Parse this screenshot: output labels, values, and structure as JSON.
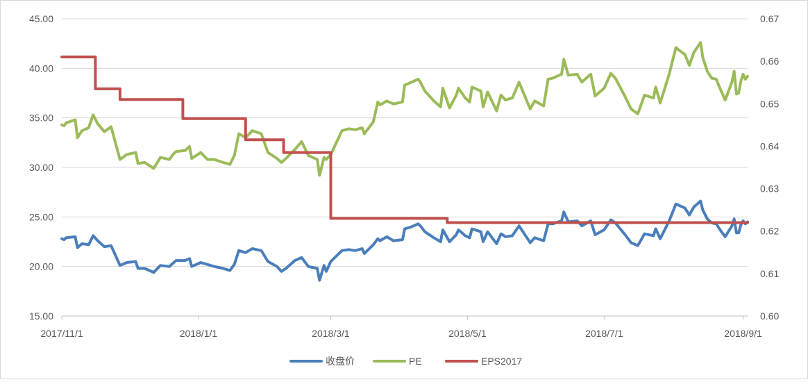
{
  "chart_data": {
    "type": "line",
    "title": "",
    "y_left": {
      "min": 15,
      "max": 45,
      "ticks": [
        "15.00",
        "20.00",
        "25.00",
        "30.00",
        "35.00",
        "40.00",
        "45.00"
      ]
    },
    "y_right": {
      "min": 0.6,
      "max": 0.67,
      "ticks": [
        "0.60",
        "0.61",
        "0.62",
        "0.63",
        "0.64",
        "0.65",
        "0.66",
        "0.67"
      ]
    },
    "x_range": [
      "2017-11-01",
      "2018-09-03"
    ],
    "x_ticks": [
      {
        "date": "2017-11-01",
        "label": "2017/11/1"
      },
      {
        "date": "2018-01-01",
        "label": "2018/1/1"
      },
      {
        "date": "2018-03-01",
        "label": "2018/3/1"
      },
      {
        "date": "2018-05-01",
        "label": "2018/5/1"
      },
      {
        "date": "2018-07-01",
        "label": "2018/7/1"
      },
      {
        "date": "2018-09-01",
        "label": "2018/9/1"
      }
    ],
    "grid": "horizontal",
    "legend_position": "bottom",
    "series": [
      {
        "name": "收盘价",
        "axis": "left",
        "color": "#4a7ebb",
        "points": [
          [
            "2017-11-01",
            22.8
          ],
          [
            "2017-11-02",
            22.7
          ],
          [
            "2017-11-03",
            22.9
          ],
          [
            "2017-11-07",
            23.0
          ],
          [
            "2017-11-08",
            21.9
          ],
          [
            "2017-11-10",
            22.3
          ],
          [
            "2017-11-13",
            22.2
          ],
          [
            "2017-11-15",
            23.1
          ],
          [
            "2017-11-17",
            22.6
          ],
          [
            "2017-11-20",
            22.0
          ],
          [
            "2017-11-23",
            22.1
          ],
          [
            "2017-11-27",
            20.1
          ],
          [
            "2017-11-30",
            20.4
          ],
          [
            "2017-12-04",
            20.5
          ],
          [
            "2017-12-05",
            19.8
          ],
          [
            "2017-12-08",
            19.8
          ],
          [
            "2017-12-12",
            19.4
          ],
          [
            "2017-12-15",
            20.1
          ],
          [
            "2017-12-19",
            20.0
          ],
          [
            "2017-12-21",
            20.4
          ],
          [
            "2017-12-22",
            20.6
          ],
          [
            "2017-12-26",
            20.6
          ],
          [
            "2017-12-28",
            20.8
          ],
          [
            "2017-12-29",
            20.0
          ],
          [
            "2018-01-02",
            20.4
          ],
          [
            "2018-01-05",
            20.2
          ],
          [
            "2018-01-08",
            20.0
          ],
          [
            "2018-01-12",
            19.8
          ],
          [
            "2018-01-15",
            19.6
          ],
          [
            "2018-01-17",
            20.2
          ],
          [
            "2018-01-19",
            21.6
          ],
          [
            "2018-01-22",
            21.4
          ],
          [
            "2018-01-25",
            21.8
          ],
          [
            "2018-01-29",
            21.6
          ],
          [
            "2018-02-01",
            20.5
          ],
          [
            "2018-02-05",
            20.0
          ],
          [
            "2018-02-07",
            19.5
          ],
          [
            "2018-02-09",
            19.8
          ],
          [
            "2018-02-13",
            20.6
          ],
          [
            "2018-02-16",
            20.9
          ],
          [
            "2018-02-19",
            20.0
          ],
          [
            "2018-02-23",
            19.8
          ],
          [
            "2018-02-24",
            18.6
          ],
          [
            "2018-02-26",
            20.1
          ],
          [
            "2018-02-27",
            19.5
          ],
          [
            "2018-03-01",
            20.5
          ],
          [
            "2018-03-06",
            21.6
          ],
          [
            "2018-03-09",
            21.7
          ],
          [
            "2018-03-12",
            21.6
          ],
          [
            "2018-03-15",
            21.8
          ],
          [
            "2018-03-16",
            21.3
          ],
          [
            "2018-03-20",
            22.2
          ],
          [
            "2018-03-22",
            22.8
          ],
          [
            "2018-03-23",
            22.6
          ],
          [
            "2018-03-26",
            23.0
          ],
          [
            "2018-03-29",
            22.6
          ],
          [
            "2018-04-02",
            22.7
          ],
          [
            "2018-04-03",
            23.8
          ],
          [
            "2018-04-06",
            24.0
          ],
          [
            "2018-04-09",
            24.3
          ],
          [
            "2018-04-10",
            24.1
          ],
          [
            "2018-04-12",
            23.5
          ],
          [
            "2018-04-16",
            22.9
          ],
          [
            "2018-04-19",
            22.5
          ],
          [
            "2018-04-20",
            23.7
          ],
          [
            "2018-04-23",
            22.5
          ],
          [
            "2018-04-26",
            23.2
          ],
          [
            "2018-04-27",
            23.7
          ],
          [
            "2018-04-30",
            23.1
          ],
          [
            "2018-05-02",
            22.9
          ],
          [
            "2018-05-03",
            23.8
          ],
          [
            "2018-05-07",
            23.5
          ],
          [
            "2018-05-08",
            22.5
          ],
          [
            "2018-05-10",
            23.5
          ],
          [
            "2018-05-14",
            22.3
          ],
          [
            "2018-05-16",
            23.3
          ],
          [
            "2018-05-18",
            23.0
          ],
          [
            "2018-05-21",
            23.1
          ],
          [
            "2018-05-24",
            24.1
          ],
          [
            "2018-05-29",
            22.4
          ],
          [
            "2018-05-31",
            22.9
          ],
          [
            "2018-06-04",
            22.6
          ],
          [
            "2018-06-06",
            24.3
          ],
          [
            "2018-06-08",
            24.3
          ],
          [
            "2018-06-12",
            24.6
          ],
          [
            "2018-06-13",
            25.5
          ],
          [
            "2018-06-15",
            24.5
          ],
          [
            "2018-06-19",
            24.6
          ],
          [
            "2018-06-21",
            24.1
          ],
          [
            "2018-06-25",
            24.6
          ],
          [
            "2018-06-27",
            23.2
          ],
          [
            "2018-07-01",
            23.7
          ],
          [
            "2018-07-04",
            24.7
          ],
          [
            "2018-07-06",
            24.4
          ],
          [
            "2018-07-10",
            23.3
          ],
          [
            "2018-07-13",
            22.4
          ],
          [
            "2018-07-16",
            22.1
          ],
          [
            "2018-07-19",
            23.3
          ],
          [
            "2018-07-23",
            23.1
          ],
          [
            "2018-07-24",
            23.8
          ],
          [
            "2018-07-26",
            22.8
          ],
          [
            "2018-07-30",
            24.6
          ],
          [
            "2018-08-02",
            26.3
          ],
          [
            "2018-08-03",
            26.2
          ],
          [
            "2018-08-06",
            25.9
          ],
          [
            "2018-08-08",
            25.2
          ],
          [
            "2018-08-10",
            26.0
          ],
          [
            "2018-08-13",
            26.6
          ],
          [
            "2018-08-14",
            25.7
          ],
          [
            "2018-08-16",
            24.8
          ],
          [
            "2018-08-18",
            24.4
          ],
          [
            "2018-08-20",
            24.3
          ],
          [
            "2018-08-22",
            23.6
          ],
          [
            "2018-08-24",
            23.0
          ],
          [
            "2018-08-27",
            24.1
          ],
          [
            "2018-08-28",
            24.8
          ],
          [
            "2018-08-29",
            23.4
          ],
          [
            "2018-08-30",
            23.4
          ],
          [
            "2018-08-31",
            24.2
          ],
          [
            "2018-09-01",
            24.6
          ],
          [
            "2018-09-02",
            24.3
          ],
          [
            "2018-09-03",
            24.5
          ]
        ]
      },
      {
        "name": "PE",
        "axis": "left",
        "color": "#9bbb59",
        "points": [
          [
            "2017-11-01",
            34.3
          ],
          [
            "2017-11-02",
            34.2
          ],
          [
            "2017-11-03",
            34.5
          ],
          [
            "2017-11-07",
            34.8
          ],
          [
            "2017-11-08",
            33.0
          ],
          [
            "2017-11-10",
            33.7
          ],
          [
            "2017-11-13",
            34.0
          ],
          [
            "2017-11-15",
            35.3
          ],
          [
            "2017-11-17",
            34.4
          ],
          [
            "2017-11-20",
            33.6
          ],
          [
            "2017-11-23",
            34.1
          ],
          [
            "2017-11-27",
            30.8
          ],
          [
            "2017-11-30",
            31.3
          ],
          [
            "2017-12-04",
            31.5
          ],
          [
            "2017-12-05",
            30.4
          ],
          [
            "2017-12-08",
            30.5
          ],
          [
            "2017-12-12",
            29.9
          ],
          [
            "2017-12-15",
            31.0
          ],
          [
            "2017-12-19",
            30.8
          ],
          [
            "2017-12-21",
            31.4
          ],
          [
            "2017-12-22",
            31.6
          ],
          [
            "2017-12-26",
            31.7
          ],
          [
            "2017-12-28",
            32.1
          ],
          [
            "2017-12-29",
            30.9
          ],
          [
            "2018-01-02",
            31.5
          ],
          [
            "2018-01-05",
            30.8
          ],
          [
            "2018-01-08",
            30.8
          ],
          [
            "2018-01-12",
            30.5
          ],
          [
            "2018-01-15",
            30.3
          ],
          [
            "2018-01-17",
            31.2
          ],
          [
            "2018-01-19",
            33.4
          ],
          [
            "2018-01-22",
            33.0
          ],
          [
            "2018-01-25",
            33.7
          ],
          [
            "2018-01-29",
            33.4
          ],
          [
            "2018-02-01",
            31.5
          ],
          [
            "2018-02-05",
            30.9
          ],
          [
            "2018-02-07",
            30.5
          ],
          [
            "2018-02-09",
            30.9
          ],
          [
            "2018-02-13",
            31.8
          ],
          [
            "2018-02-16",
            32.6
          ],
          [
            "2018-02-19",
            31.2
          ],
          [
            "2018-02-23",
            30.8
          ],
          [
            "2018-02-24",
            29.2
          ],
          [
            "2018-02-26",
            31.0
          ],
          [
            "2018-02-27",
            30.8
          ],
          [
            "2018-03-01",
            31.3
          ],
          [
            "2018-03-06",
            33.7
          ],
          [
            "2018-03-09",
            33.9
          ],
          [
            "2018-03-12",
            33.8
          ],
          [
            "2018-03-15",
            34.0
          ],
          [
            "2018-03-16",
            33.4
          ],
          [
            "2018-03-20",
            34.6
          ],
          [
            "2018-03-22",
            36.6
          ],
          [
            "2018-03-23",
            36.3
          ],
          [
            "2018-03-26",
            36.7
          ],
          [
            "2018-03-29",
            36.4
          ],
          [
            "2018-04-02",
            36.6
          ],
          [
            "2018-04-03",
            38.3
          ],
          [
            "2018-04-06",
            38.6
          ],
          [
            "2018-04-09",
            38.9
          ],
          [
            "2018-04-10",
            38.6
          ],
          [
            "2018-04-12",
            37.7
          ],
          [
            "2018-04-16",
            36.7
          ],
          [
            "2018-04-19",
            36.1
          ],
          [
            "2018-04-20",
            38.0
          ],
          [
            "2018-04-23",
            36.0
          ],
          [
            "2018-04-26",
            37.3
          ],
          [
            "2018-04-27",
            38.0
          ],
          [
            "2018-04-30",
            37.0
          ],
          [
            "2018-05-02",
            36.6
          ],
          [
            "2018-05-03",
            38.1
          ],
          [
            "2018-05-07",
            37.7
          ],
          [
            "2018-05-08",
            36.1
          ],
          [
            "2018-05-10",
            37.6
          ],
          [
            "2018-05-14",
            35.7
          ],
          [
            "2018-05-16",
            37.3
          ],
          [
            "2018-05-18",
            36.8
          ],
          [
            "2018-05-21",
            37.0
          ],
          [
            "2018-05-24",
            38.6
          ],
          [
            "2018-05-29",
            35.9
          ],
          [
            "2018-05-31",
            36.7
          ],
          [
            "2018-06-04",
            36.2
          ],
          [
            "2018-06-06",
            38.9
          ],
          [
            "2018-06-08",
            39.0
          ],
          [
            "2018-06-12",
            39.4
          ],
          [
            "2018-06-13",
            40.9
          ],
          [
            "2018-06-15",
            39.3
          ],
          [
            "2018-06-19",
            39.4
          ],
          [
            "2018-06-21",
            38.6
          ],
          [
            "2018-06-25",
            39.4
          ],
          [
            "2018-06-27",
            37.2
          ],
          [
            "2018-07-01",
            38.0
          ],
          [
            "2018-07-04",
            39.5
          ],
          [
            "2018-07-06",
            39.0
          ],
          [
            "2018-07-10",
            37.3
          ],
          [
            "2018-07-13",
            35.9
          ],
          [
            "2018-07-16",
            35.4
          ],
          [
            "2018-07-19",
            37.3
          ],
          [
            "2018-07-23",
            37.0
          ],
          [
            "2018-07-24",
            38.1
          ],
          [
            "2018-07-26",
            36.5
          ],
          [
            "2018-07-30",
            39.4
          ],
          [
            "2018-08-02",
            42.1
          ],
          [
            "2018-08-03",
            41.9
          ],
          [
            "2018-08-06",
            41.4
          ],
          [
            "2018-08-08",
            40.3
          ],
          [
            "2018-08-10",
            41.6
          ],
          [
            "2018-08-13",
            42.6
          ],
          [
            "2018-08-14",
            41.1
          ],
          [
            "2018-08-16",
            39.7
          ],
          [
            "2018-08-18",
            39.0
          ],
          [
            "2018-08-20",
            38.9
          ],
          [
            "2018-08-22",
            37.8
          ],
          [
            "2018-08-24",
            36.8
          ],
          [
            "2018-08-27",
            38.6
          ],
          [
            "2018-08-28",
            39.7
          ],
          [
            "2018-08-29",
            37.4
          ],
          [
            "2018-08-30",
            37.5
          ],
          [
            "2018-08-31",
            38.7
          ],
          [
            "2018-09-01",
            39.4
          ],
          [
            "2018-09-02",
            38.9
          ],
          [
            "2018-09-03",
            39.2
          ]
        ]
      },
      {
        "name": "EPS2017",
        "axis": "right",
        "color": "#c0504d",
        "step": true,
        "points": [
          [
            "2017-11-01",
            0.661
          ],
          [
            "2017-11-15",
            0.661
          ],
          [
            "2017-11-16",
            0.6535
          ],
          [
            "2017-11-25",
            0.6535
          ],
          [
            "2017-11-27",
            0.651
          ],
          [
            "2017-12-23",
            0.651
          ],
          [
            "2017-12-25",
            0.6465
          ],
          [
            "2018-01-21",
            0.6465
          ],
          [
            "2018-01-22",
            0.6415
          ],
          [
            "2018-02-07",
            0.6415
          ],
          [
            "2018-02-08",
            0.6385
          ],
          [
            "2018-02-28",
            0.6385
          ],
          [
            "2018-03-01",
            0.623
          ],
          [
            "2018-04-21",
            0.623
          ],
          [
            "2018-04-22",
            0.622
          ],
          [
            "2018-09-03",
            0.622
          ]
        ]
      }
    ]
  }
}
